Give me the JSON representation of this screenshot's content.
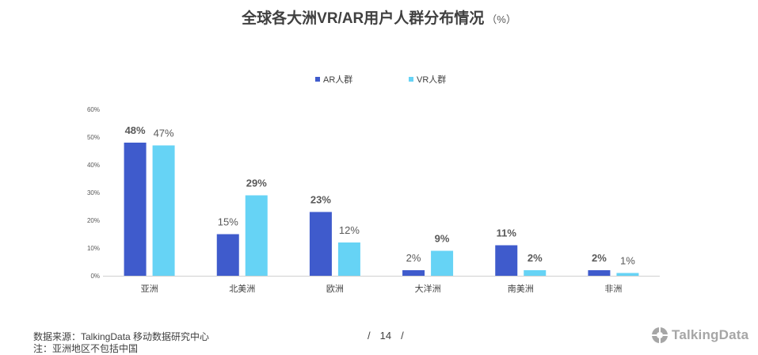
{
  "title": "全球各大洲VR/AR用户人群分布情况",
  "title_unit": "（%）",
  "chart_data": {
    "type": "bar",
    "categories": [
      "亚洲",
      "北美洲",
      "欧洲",
      "大洋洲",
      "南美洲",
      "非洲"
    ],
    "series": [
      {
        "name": "AR人群",
        "color": "#3f5bcc",
        "values": [
          48,
          15,
          23,
          2,
          11,
          2
        ],
        "data_labels": [
          "48%",
          "15%",
          "23%",
          "2%",
          "11%",
          "2%"
        ],
        "label_bold": [
          true,
          false,
          true,
          false,
          true,
          true
        ]
      },
      {
        "name": "VR人群",
        "color": "#66d3f5",
        "values": [
          47,
          29,
          12,
          9,
          2,
          1
        ],
        "data_labels": [
          "47%",
          "29%",
          "12%",
          "9%",
          "2%",
          "1%"
        ],
        "label_bold": [
          false,
          true,
          false,
          true,
          true,
          false
        ]
      }
    ],
    "yticks": [
      "0%",
      "10%",
      "20%",
      "30%",
      "40%",
      "50%",
      "60%"
    ],
    "ylim": [
      0,
      60
    ],
    "legend": "top-center",
    "grid": false
  },
  "footer": {
    "source": "数据来源：TalkingData 移动数据研究中心",
    "note": "注：亚洲地区不包括中国",
    "page_sep_left": "/",
    "page_number": "14",
    "page_sep_right": "/",
    "brand": "TalkingData",
    "brand_icon": "talkingdata-logo-icon"
  }
}
